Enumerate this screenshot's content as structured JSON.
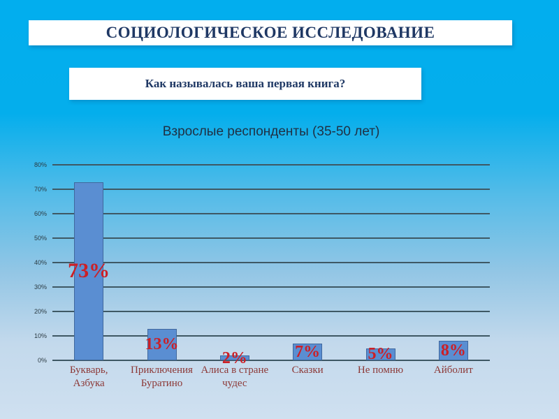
{
  "header": {
    "title": "СОЦИОЛОГИЧЕСКОЕ ИССЛЕДОВАНИЕ",
    "question": "Как называлась ваша первая книга?"
  },
  "chart_data": {
    "type": "bar",
    "title": "Взрослые респонденты (35-50 лет)",
    "categories": [
      "Букварь, Азбука",
      "Приключения Буратино",
      "Алиса в стране чудес",
      "Сказки",
      "Не помню",
      "Айболит"
    ],
    "category_lines": [
      [
        "Букварь,",
        "Азбука"
      ],
      [
        "Приключения",
        "Буратино"
      ],
      [
        "Алиса в стране",
        "чудес"
      ],
      [
        "Сказки"
      ],
      [
        "Не помню"
      ],
      [
        "Айболит"
      ]
    ],
    "values": [
      73,
      13,
      2,
      7,
      5,
      8
    ],
    "data_labels": [
      "73%",
      "13%",
      "2%",
      "7%",
      "5%",
      "8%"
    ],
    "xlabel": "",
    "ylabel": "",
    "ylim": [
      0,
      80
    ],
    "ytick_step": 10,
    "ytick_labels": [
      "0%",
      "10%",
      "20%",
      "30%",
      "40%",
      "50%",
      "60%",
      "70%",
      "80%"
    ],
    "grid": true,
    "legend": false,
    "colors": {
      "bar_fill": "#5a8ed2",
      "bar_border": "#40689d",
      "data_label": "#cc1f26",
      "category_label": "#8c3836",
      "grid_line": "#3e5864",
      "tick_label": "#2b3a42",
      "chart_title": "#1f3044"
    }
  },
  "slide": {
    "colors": {
      "background_top": "#02aeee",
      "background_bottom": "#cfe0f0",
      "banner_background": "#ffffff",
      "banner_text": "#1f3864"
    }
  }
}
